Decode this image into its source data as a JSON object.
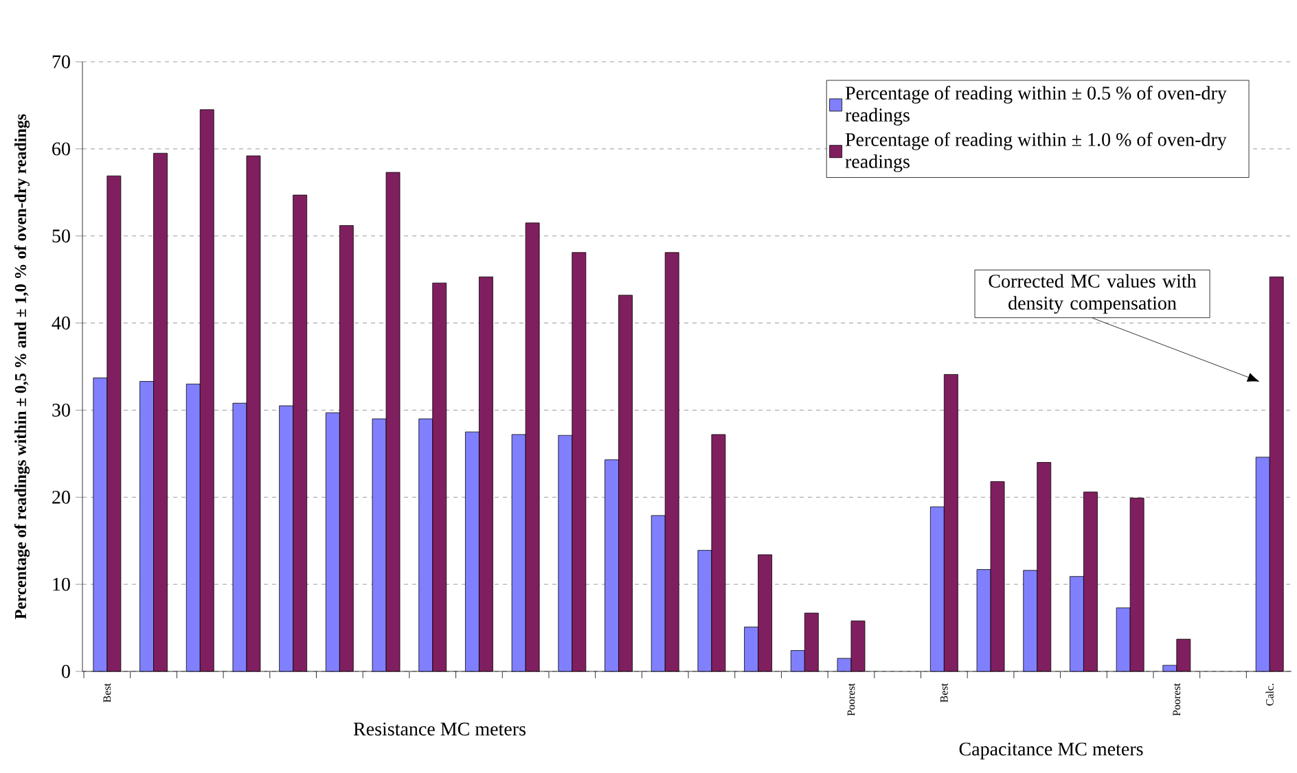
{
  "chart_data": {
    "type": "bar",
    "ylabel": "Percentage of readings within ± 0,5 % and ± 1,0 % of oven-dry readings",
    "categories": [
      "Best",
      null,
      null,
      null,
      null,
      null,
      null,
      null,
      null,
      null,
      null,
      null,
      null,
      null,
      null,
      null,
      "Poorest",
      null,
      "Best",
      null,
      null,
      null,
      null,
      "Poorest",
      null,
      "Calc."
    ],
    "series": [
      {
        "name": "Percentage of reading within ± 0.5 % of oven-dry readings",
        "color": "#8080ff",
        "values": [
          33.7,
          33.3,
          33.0,
          30.8,
          30.5,
          29.7,
          29.0,
          29.0,
          27.5,
          27.2,
          27.1,
          24.3,
          17.9,
          13.9,
          5.1,
          2.4,
          1.5,
          null,
          18.9,
          11.7,
          11.6,
          10.9,
          7.3,
          0.7,
          null,
          24.6
        ]
      },
      {
        "name": "Percentage of reading within ± 1.0 % of oven-dry readings",
        "color": "#801f5f",
        "values": [
          56.9,
          59.5,
          64.5,
          59.2,
          54.7,
          51.2,
          57.3,
          44.6,
          45.3,
          51.5,
          48.1,
          43.2,
          48.1,
          27.2,
          13.4,
          6.7,
          5.8,
          null,
          34.1,
          21.8,
          24.0,
          20.6,
          19.9,
          3.7,
          null,
          45.3
        ]
      }
    ],
    "ylim": [
      0,
      70
    ],
    "yticks": [
      0,
      10,
      20,
      30,
      40,
      50,
      60,
      70
    ],
    "grid": "y",
    "legend": "top right",
    "annotations": [
      "Corrected MC values with density compensation",
      "Resistance MC meters",
      "Capacitance MC meters"
    ]
  }
}
